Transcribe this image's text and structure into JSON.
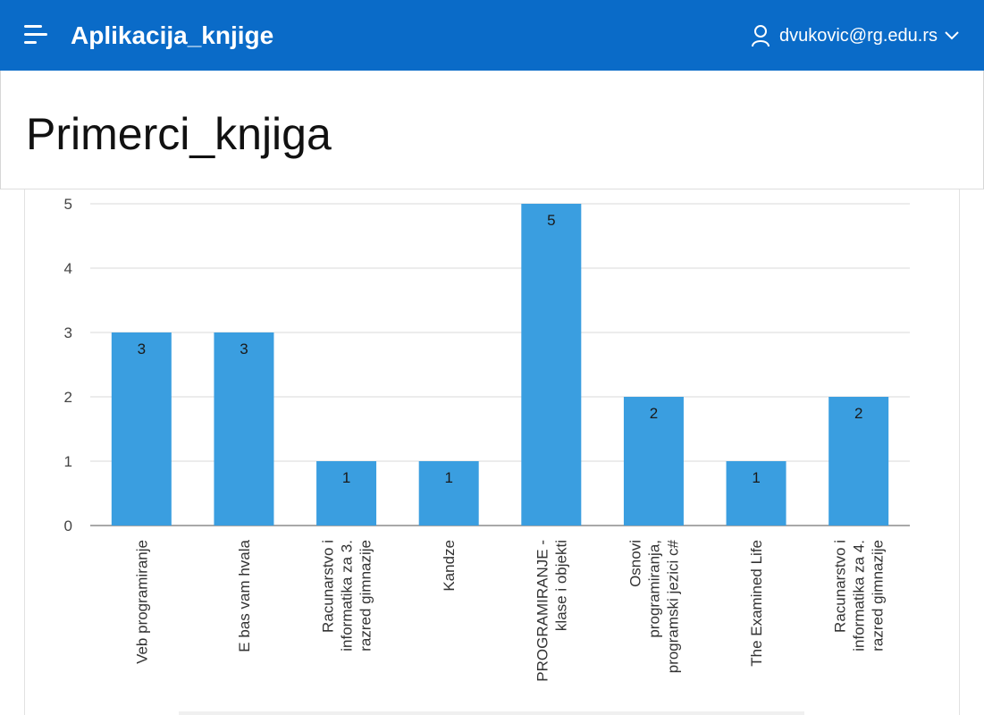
{
  "header": {
    "app_title": "Aplikacija_knjige",
    "user_email": "dvukovic@rg.edu.rs",
    "menu_icon": "hamburger-icon",
    "user_icon": "user-icon",
    "dropdown_icon": "chevron-down-icon",
    "bar_color": "#0a6bc8"
  },
  "page": {
    "title": "Primerci_knjiga"
  },
  "chart_data": {
    "type": "bar",
    "categories": [
      "Veb programiranje",
      "E bas vam hvala",
      "Racunarstvo i informatika za 3. razred gimnazije",
      "Kandze",
      "PROGRAMIRANJE - klase i objekti",
      "Osnovi programiranja, programski jezici c#",
      "The Examined Life",
      "Racunarstvo i informatika za 4. razred gimnazije"
    ],
    "category_lines": [
      [
        "Veb programiranje"
      ],
      [
        "E bas vam hvala"
      ],
      [
        "Racunarstvo i",
        "informatika za 3.",
        "razred gimnazije"
      ],
      [
        "Kandze"
      ],
      [
        "PROGRAMIRANJE -",
        "klase i objekti"
      ],
      [
        "Osnovi",
        "programiranja,",
        "programski jezici c#"
      ],
      [
        "The Examined Life"
      ],
      [
        "Racunarstvo i",
        "informatika za 4.",
        "razred gimnazije"
      ]
    ],
    "values": [
      3,
      3,
      1,
      1,
      5,
      2,
      1,
      2
    ],
    "ylim": [
      0,
      5
    ],
    "yticks": [
      0,
      1,
      2,
      3,
      4,
      5
    ],
    "grid": true,
    "data_labels": true,
    "bar_color": "#3a9ee0",
    "title": "",
    "xlabel": "",
    "ylabel": ""
  }
}
